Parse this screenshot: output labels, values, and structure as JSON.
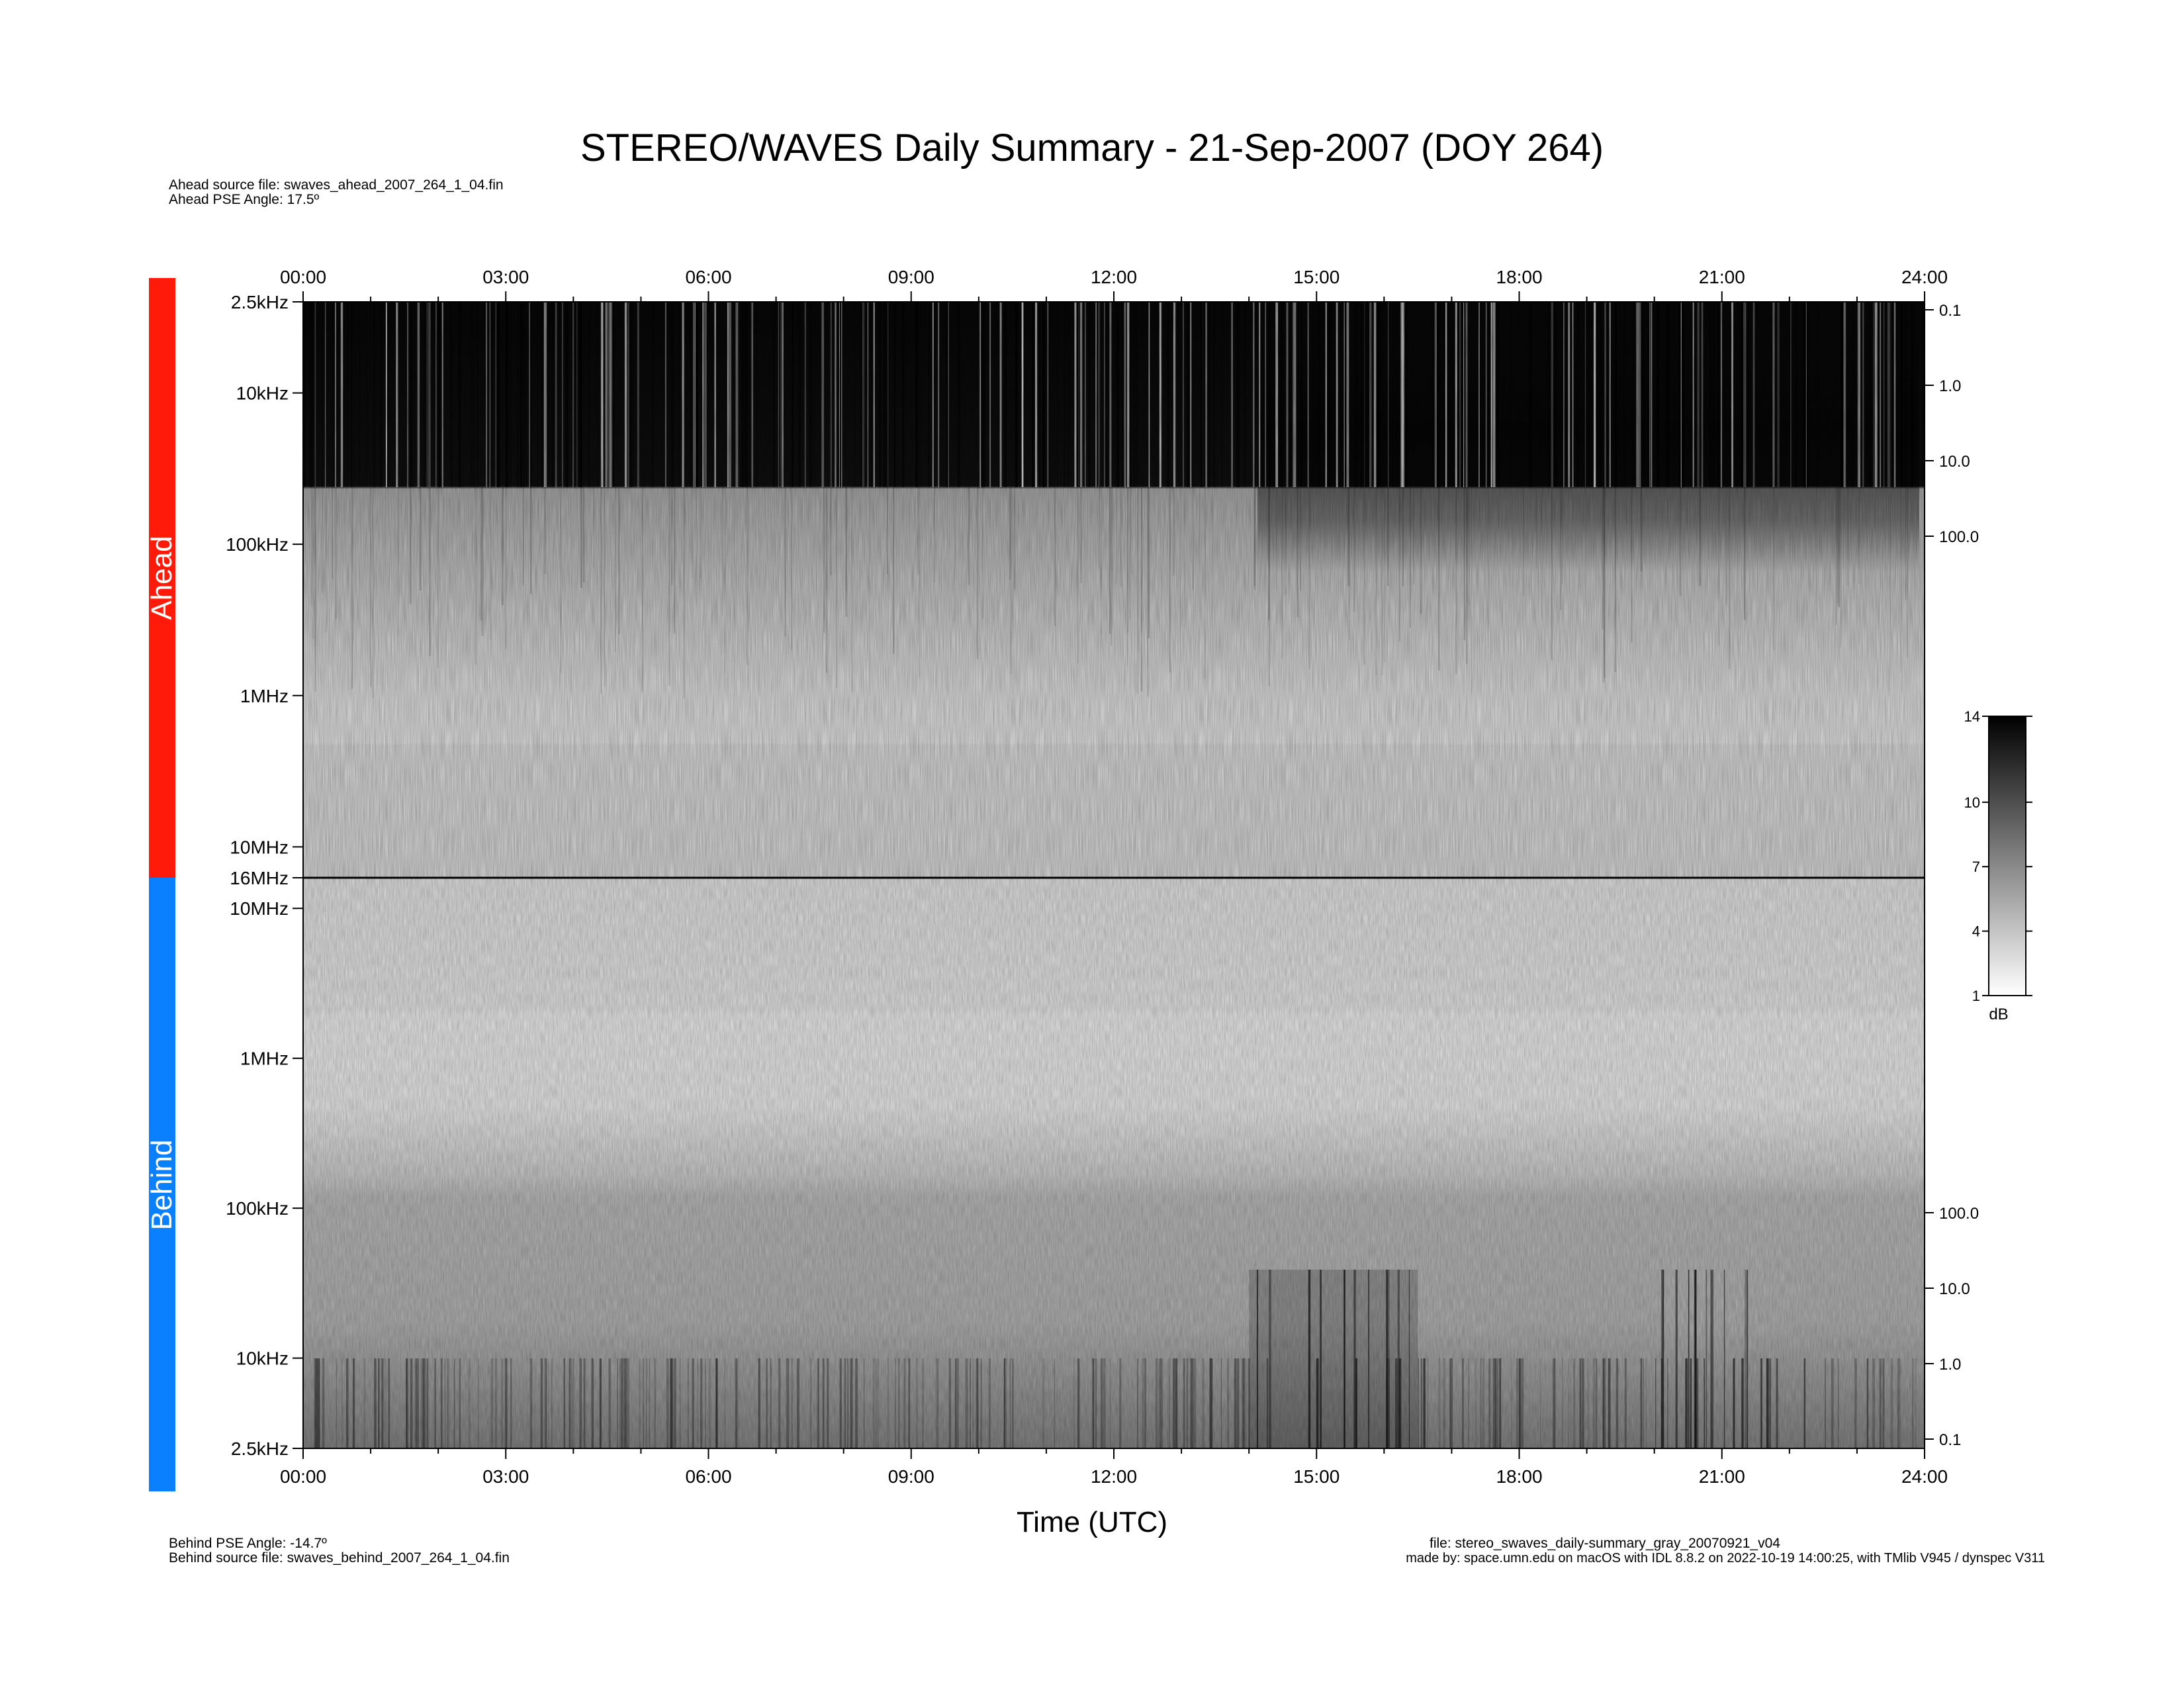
{
  "chart_data": {
    "type": "heatmap",
    "title": "STEREO/WAVES Daily Summary - 21-Sep-2007 (DOY 264)",
    "xlabel": "Time (UTC)",
    "x_ticks": [
      "00:00",
      "03:00",
      "06:00",
      "09:00",
      "12:00",
      "15:00",
      "18:00",
      "21:00",
      "24:00"
    ],
    "xlim_hours": [
      0,
      24
    ],
    "panels": [
      {
        "name": "Ahead",
        "color": "#ff1a0a",
        "ylabel_ticks": [
          "2.5kHz",
          "10kHz",
          "100kHz",
          "1MHz",
          "10MHz",
          "16MHz"
        ],
        "right_ticks": [
          "0.1",
          "1.0",
          "10.0",
          "100.0"
        ]
      },
      {
        "name": "Behind",
        "color": "#0a80ff",
        "ylabel_ticks": [
          "10MHz",
          "1MHz",
          "100kHz",
          "10kHz",
          "2.5kHz"
        ],
        "right_ticks": [
          "100.0",
          "10.0",
          "1.0",
          "0.1"
        ]
      }
    ],
    "colorbar": {
      "label": "dB",
      "range": [
        1,
        14
      ],
      "ticks": [
        "1",
        "4",
        "7",
        "10",
        "14"
      ]
    }
  },
  "info": {
    "ahead_source": "Ahead source file: swaves_ahead_2007_264_1_04.fin",
    "ahead_pse": "Ahead PSE Angle:   17.5º",
    "behind_pse": "Behind PSE Angle:  -14.7º",
    "behind_source": "Behind source file: swaves_behind_2007_264_1_04.fin",
    "file": "file: stereo_swaves_daily-summary_gray_20070921_v04",
    "made_by": "made by: space.umn.edu on macOS with IDL 8.8.2 on 2022-10-19 14:00:25, with TMlib V945 / dynspec V311"
  }
}
